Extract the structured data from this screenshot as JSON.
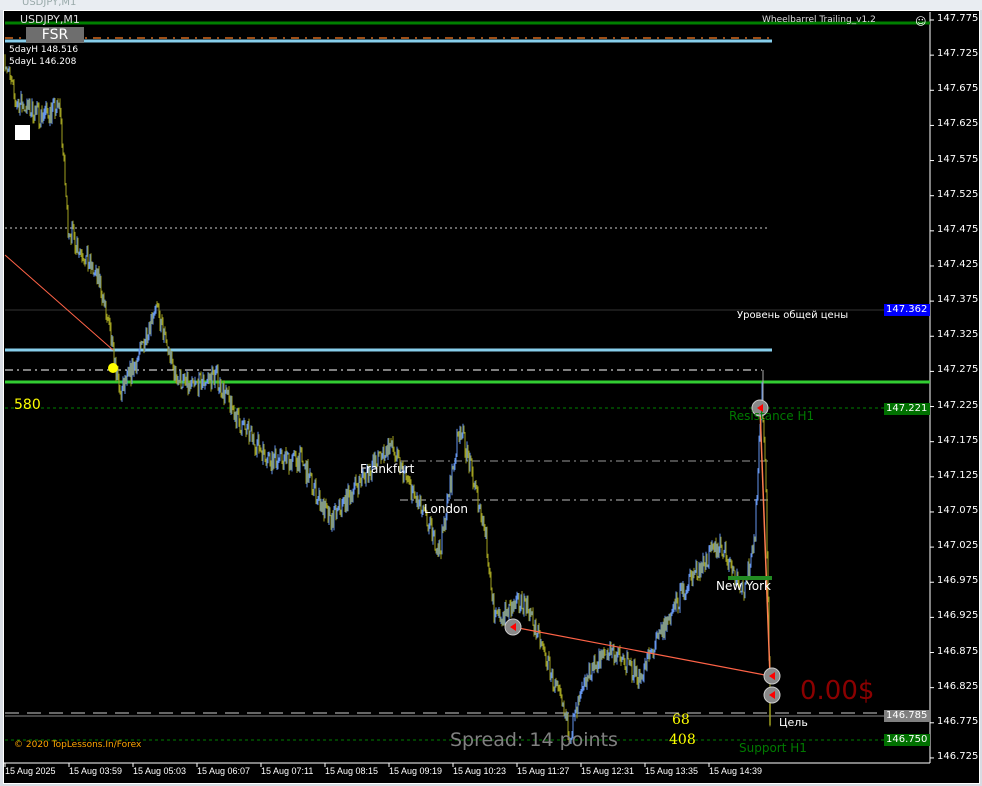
{
  "window": {
    "title": "USDJPY,M1"
  },
  "chart": {
    "symbol": "USDJPY,M1",
    "fsr_button": "FSR",
    "day_high": "5dayH 148.516",
    "day_low": "5dayL 146.208",
    "indicator": "Wheelbarrel Trailing_v1.2",
    "level_label": "Уровень общей цены",
    "sessions": [
      "Frankfurt",
      "London",
      "New York"
    ],
    "resistance": "Resistance H1",
    "support": "Support H1",
    "target": "Цель",
    "count_580": "580",
    "count_68": "68",
    "count_408": "408",
    "spread": "Spread: 14 points",
    "profit": "0.00$",
    "copyright": "© 2020 TopLessons.In/Forex"
  },
  "price_axis": [
    "147.775",
    "147.725",
    "147.675",
    "147.625",
    "147.575",
    "147.525",
    "147.475",
    "147.425",
    "147.375",
    "147.325",
    "147.275",
    "147.225",
    "147.175",
    "147.125",
    "147.075",
    "147.025",
    "146.975",
    "146.925",
    "146.875",
    "146.825",
    "146.775",
    "146.725"
  ],
  "price_tags": [
    {
      "value": "147.362",
      "color": "#0000ff"
    },
    {
      "value": "147.221",
      "color": "#007000"
    },
    {
      "value": "146.785",
      "color": "#808080"
    },
    {
      "value": "146.750",
      "color": "#007000"
    }
  ],
  "time_axis": [
    "15 Aug 2025",
    "15 Aug 03:59",
    "15 Aug 05:03",
    "15 Aug 06:07",
    "15 Aug 07:11",
    "15 Aug 08:15",
    "15 Aug 09:19",
    "15 Aug 10:23",
    "15 Aug 11:27",
    "15 Aug 12:31",
    "15 Aug 13:35",
    "15 Aug 14:39"
  ],
  "colors": {
    "bull": "#6495ed",
    "bear": "#a0a020",
    "lime": "#32cd32",
    "lightblue": "#87ceeb"
  }
}
